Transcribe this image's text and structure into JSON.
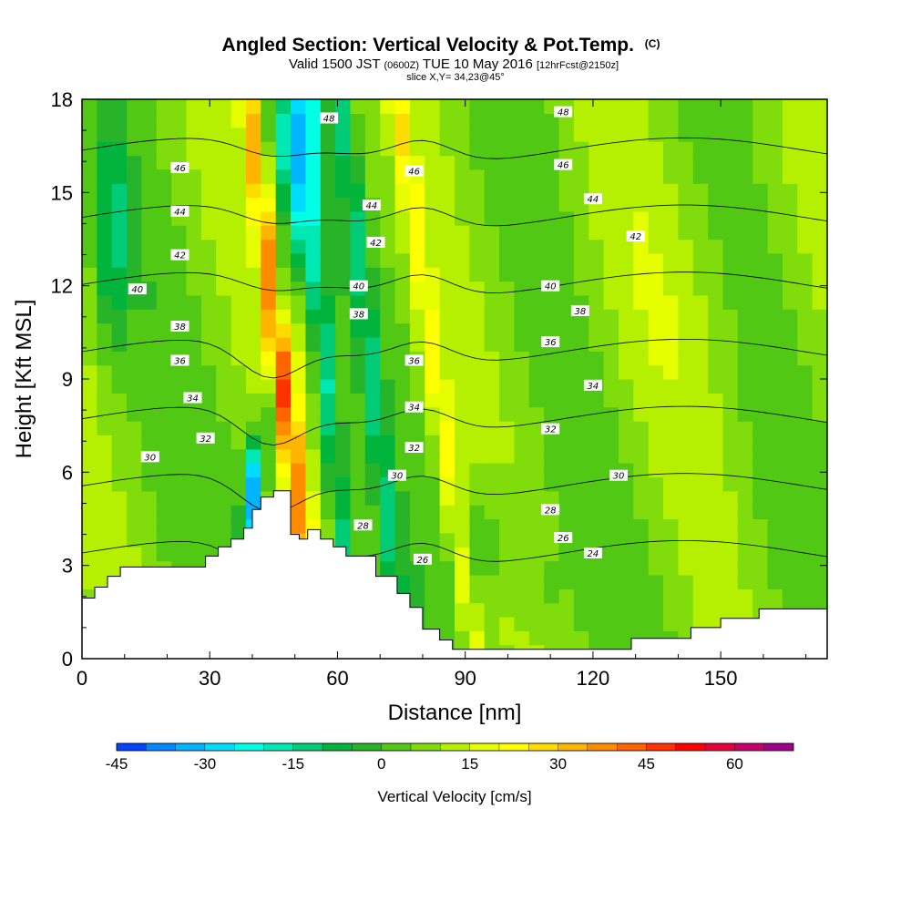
{
  "chart_data": {
    "type": "heatmap",
    "title": "Angled Section: Vertical Velocity & Pot.Temp.",
    "title_unit": "(C)",
    "subtitle_main": "Valid 1500 JST",
    "subtitle_utc": "(0600Z)",
    "subtitle_date": "TUE 10 May 2016",
    "subtitle_fcst": "[12hrFcst@2150z]",
    "slice_text": "slice X,Y= 34,23@45°",
    "xlabel": "Distance [nm]",
    "ylabel": "Height [Kft MSL]",
    "xlim": [
      0,
      175
    ],
    "ylim": [
      0,
      18
    ],
    "xticks": [
      0,
      30,
      60,
      90,
      120,
      150
    ],
    "yticks": [
      0,
      3,
      6,
      9,
      12,
      15,
      18
    ],
    "colorbar": {
      "label": "Vertical Velocity [cm/s]",
      "ticks": [
        -45,
        -30,
        -15,
        0,
        15,
        30,
        45,
        60
      ],
      "levels": [
        -45,
        -40,
        -35,
        -30,
        -25,
        -20,
        -15,
        -10,
        -5,
        0,
        5,
        10,
        15,
        20,
        25,
        30,
        35,
        40,
        45,
        50,
        55,
        60,
        65,
        70
      ],
      "colors": [
        "#0000ff",
        "#0044ff",
        "#0088ff",
        "#00b4ff",
        "#00dcff",
        "#00ffe6",
        "#00e8b4",
        "#00cc78",
        "#00b43c",
        "#28b428",
        "#50c814",
        "#80dc0a",
        "#b4f000",
        "#e6ff00",
        "#ffff00",
        "#ffdc00",
        "#ffb400",
        "#ff8c00",
        "#ff6400",
        "#ff3200",
        "#ff0000",
        "#e6003c",
        "#c8006e",
        "#a0008c",
        "#6e0096"
      ]
    },
    "theta_levels": [
      24,
      26,
      28,
      30,
      32,
      34,
      36,
      38,
      40,
      42,
      44,
      46,
      48
    ],
    "theta_labels": [
      {
        "text": "48",
        "x": 58,
        "y": 17.4
      },
      {
        "text": "48",
        "x": 113,
        "y": 17.6
      },
      {
        "text": "46",
        "x": 23,
        "y": 15.8
      },
      {
        "text": "46",
        "x": 78,
        "y": 15.7
      },
      {
        "text": "46",
        "x": 113,
        "y": 15.9
      },
      {
        "text": "44",
        "x": 23,
        "y": 14.4
      },
      {
        "text": "44",
        "x": 68,
        "y": 14.6
      },
      {
        "text": "44",
        "x": 120,
        "y": 14.8
      },
      {
        "text": "42",
        "x": 23,
        "y": 13.0
      },
      {
        "text": "42",
        "x": 69,
        "y": 13.4
      },
      {
        "text": "42",
        "x": 130,
        "y": 13.6
      },
      {
        "text": "40",
        "x": 13,
        "y": 11.9
      },
      {
        "text": "40",
        "x": 65,
        "y": 12.0
      },
      {
        "text": "40",
        "x": 110,
        "y": 12.0
      },
      {
        "text": "38",
        "x": 23,
        "y": 10.7
      },
      {
        "text": "38",
        "x": 65,
        "y": 11.1
      },
      {
        "text": "38",
        "x": 117,
        "y": 11.2
      },
      {
        "text": "36",
        "x": 23,
        "y": 9.6
      },
      {
        "text": "36",
        "x": 78,
        "y": 9.6
      },
      {
        "text": "36",
        "x": 110,
        "y": 10.2
      },
      {
        "text": "34",
        "x": 26,
        "y": 8.4
      },
      {
        "text": "34",
        "x": 78,
        "y": 8.1
      },
      {
        "text": "34",
        "x": 120,
        "y": 8.8
      },
      {
        "text": "32",
        "x": 29,
        "y": 7.1
      },
      {
        "text": "32",
        "x": 78,
        "y": 6.8
      },
      {
        "text": "32",
        "x": 110,
        "y": 7.4
      },
      {
        "text": "30",
        "x": 16,
        "y": 6.5
      },
      {
        "text": "30",
        "x": 74,
        "y": 5.9
      },
      {
        "text": "30",
        "x": 126,
        "y": 5.9
      },
      {
        "text": "28",
        "x": 66,
        "y": 4.3
      },
      {
        "text": "28",
        "x": 110,
        "y": 4.8
      },
      {
        "text": "26",
        "x": 80,
        "y": 3.2
      },
      {
        "text": "26",
        "x": 113,
        "y": 3.9
      },
      {
        "text": "24",
        "x": 120,
        "y": 3.4
      }
    ],
    "terrain": [
      [
        0,
        1.95
      ],
      [
        3,
        1.95
      ],
      [
        3,
        2.3
      ],
      [
        6,
        2.3
      ],
      [
        6,
        2.65
      ],
      [
        9,
        2.65
      ],
      [
        9,
        2.95
      ],
      [
        29,
        2.95
      ],
      [
        29,
        3.3
      ],
      [
        32,
        3.3
      ],
      [
        32,
        3.6
      ],
      [
        35,
        3.6
      ],
      [
        35,
        3.85
      ],
      [
        38,
        3.85
      ],
      [
        38,
        4.2
      ],
      [
        40,
        4.2
      ],
      [
        40,
        4.8
      ],
      [
        42,
        4.8
      ],
      [
        42,
        5.2
      ],
      [
        45,
        5.2
      ],
      [
        45,
        5.4
      ],
      [
        49,
        5.4
      ],
      [
        49,
        4.0
      ],
      [
        51,
        4.0
      ],
      [
        51,
        3.85
      ],
      [
        53,
        3.85
      ],
      [
        53,
        4.15
      ],
      [
        56,
        4.15
      ],
      [
        56,
        3.85
      ],
      [
        59,
        3.85
      ],
      [
        59,
        3.6
      ],
      [
        62,
        3.6
      ],
      [
        62,
        3.3
      ],
      [
        69,
        3.3
      ],
      [
        69,
        2.65
      ],
      [
        74,
        2.65
      ],
      [
        74,
        2.1
      ],
      [
        77,
        2.1
      ],
      [
        77,
        1.65
      ],
      [
        80,
        1.65
      ],
      [
        80,
        0.95
      ],
      [
        84,
        0.95
      ],
      [
        84,
        0.6
      ],
      [
        87,
        0.6
      ],
      [
        87,
        0.3
      ],
      [
        129,
        0.3
      ],
      [
        129,
        0.65
      ],
      [
        143,
        0.65
      ],
      [
        143,
        1.0
      ],
      [
        150,
        1.0
      ],
      [
        150,
        1.3
      ],
      [
        159,
        1.3
      ],
      [
        159,
        1.6
      ],
      [
        175,
        1.6
      ]
    ]
  }
}
